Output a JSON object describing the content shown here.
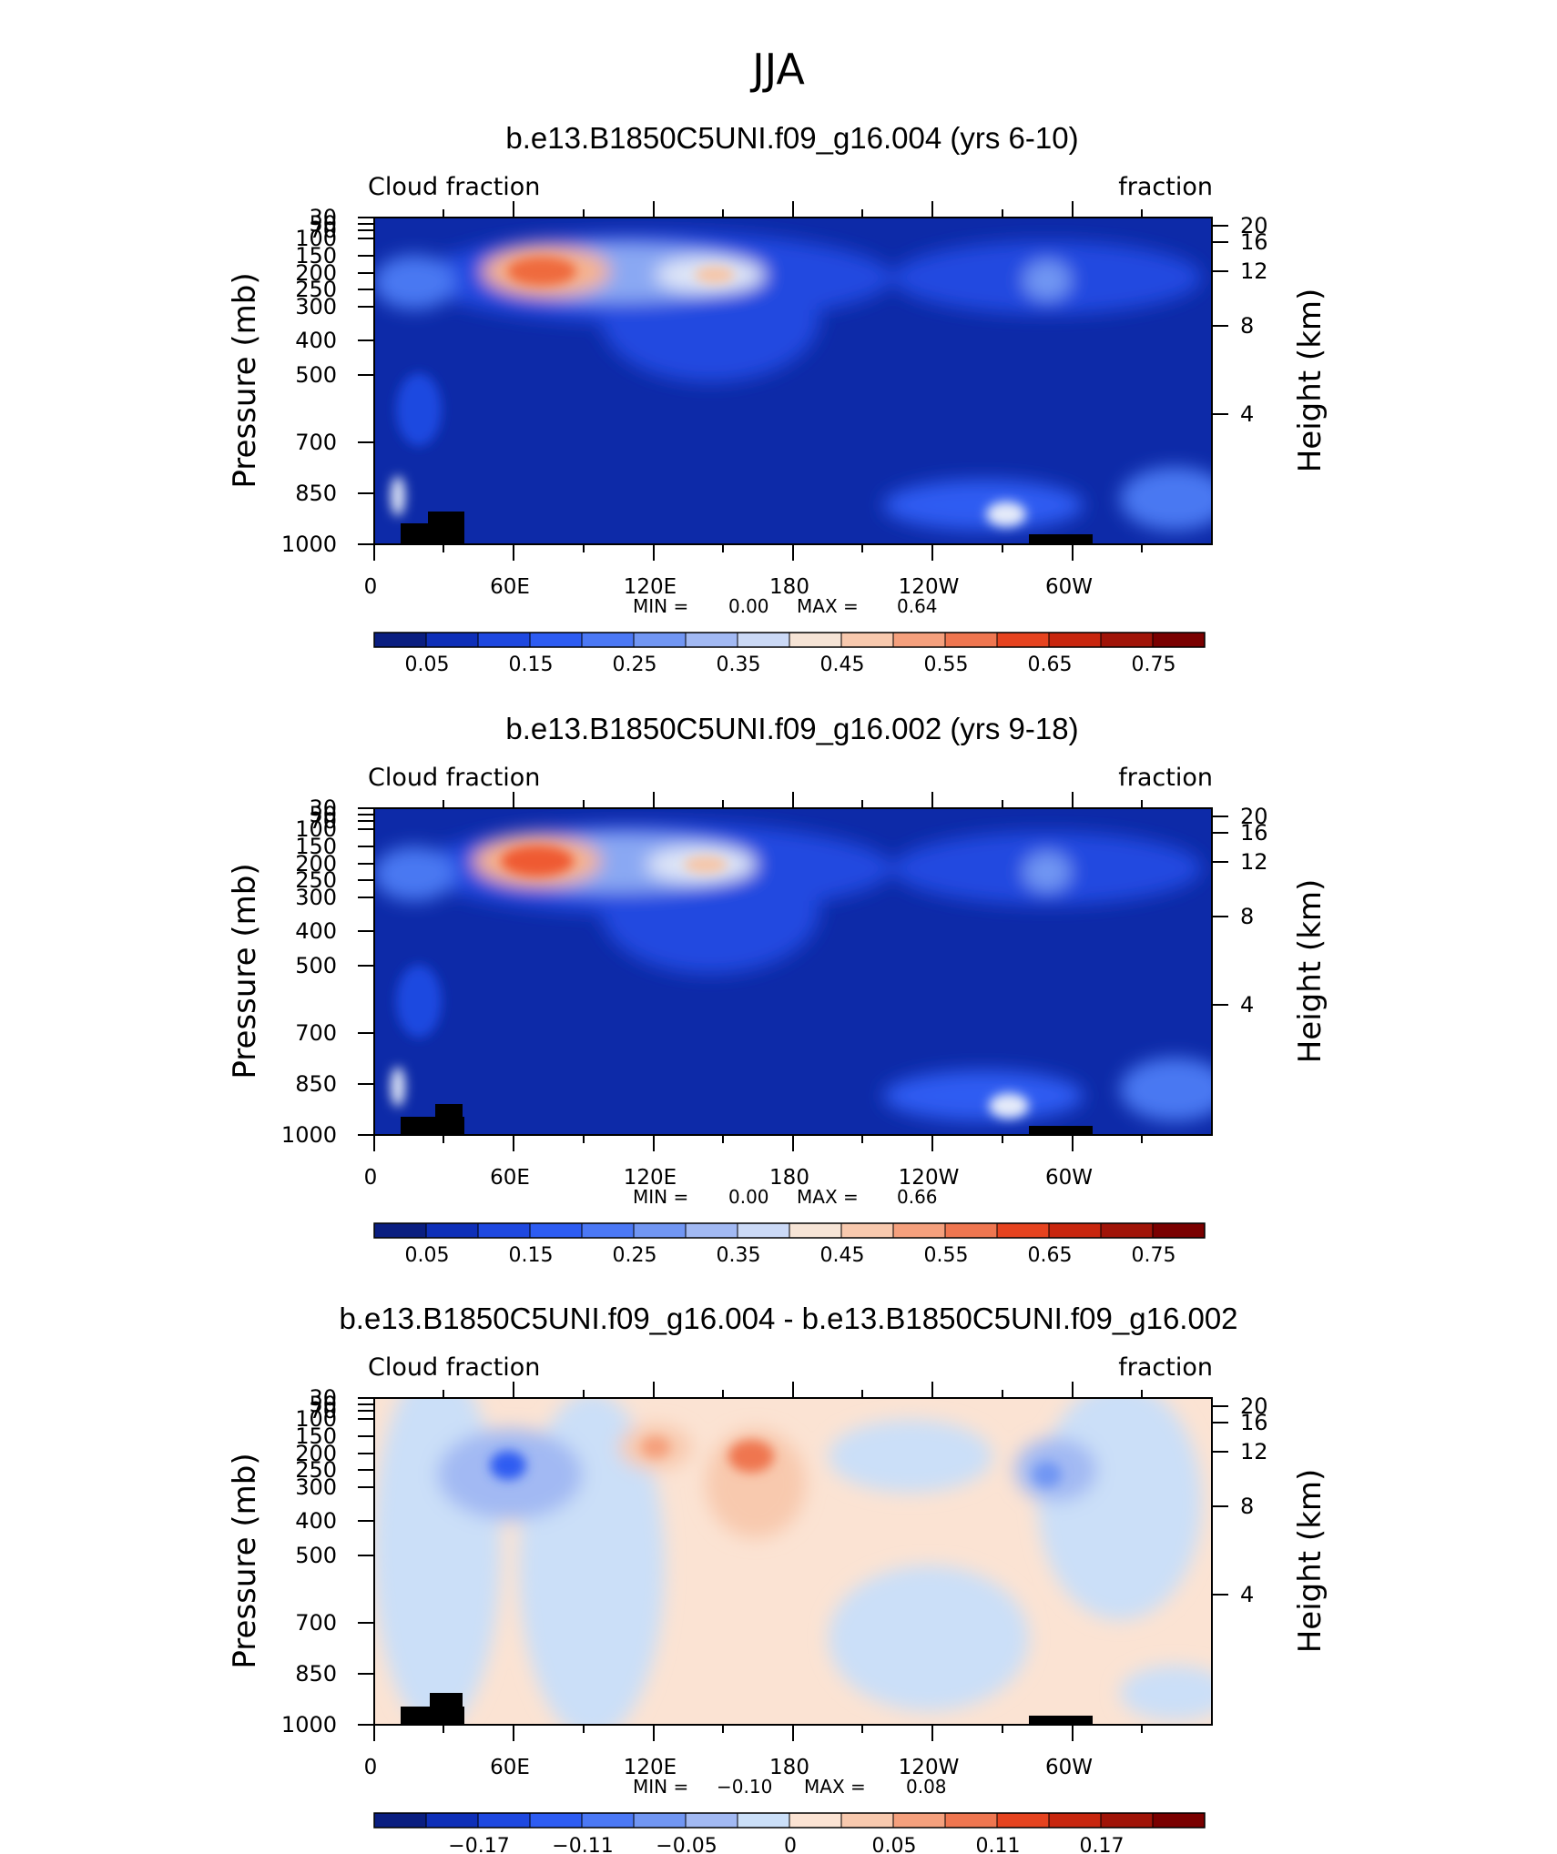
{
  "figure_title": "JJA",
  "colors": {
    "fraction_scale": [
      "#0a1e80",
      "#0e2fb8",
      "#1e48e0",
      "#2d5cf2",
      "#4b78f5",
      "#7196f3",
      "#a2b9f3",
      "#cbd9f6",
      "#f6e4d6",
      "#f8c9ae",
      "#f5a07d",
      "#ef7650",
      "#e6431f",
      "#c8260e",
      "#a01408",
      "#7a0000"
    ],
    "diff_scale": [
      "#0a1e80",
      "#0e2fb8",
      "#1e48e0",
      "#2d5cf2",
      "#4b78f5",
      "#7196f3",
      "#a2b9f3",
      "#cbdff8",
      "#fbe3d3",
      "#f8c9ae",
      "#f5a07d",
      "#ef7650",
      "#e6431f",
      "#c8260e",
      "#a01408",
      "#7a0000"
    ],
    "terrain": "#000000"
  },
  "chart_data": [
    {
      "type": "heatmap",
      "title": "b.e13.B1850C5UNI.f09_g16.004 (yrs 6-10)",
      "left_label": "Cloud fraction",
      "right_label": "fraction",
      "ylabel": "Pressure (mb)",
      "y2label": "Height (km)",
      "xticks": [
        "0",
        "60E",
        "120E",
        "180",
        "120W",
        "60W"
      ],
      "yticks": [
        "30",
        "50",
        "70",
        "100",
        "150",
        "200",
        "250",
        "300",
        "400",
        "500",
        "700",
        "850",
        "1000"
      ],
      "y2ticks": [
        "20",
        "16",
        "12",
        "8",
        "4"
      ],
      "xlim": [
        0,
        360
      ],
      "ylim": [
        1000,
        30
      ],
      "min_label": "MIN =",
      "min_value": "0.00",
      "max_label": "MAX =",
      "max_value": "0.64",
      "colorbar_labels": [
        "0.05",
        "0.15",
        "0.25",
        "0.35",
        "0.45",
        "0.55",
        "0.65",
        "0.75"
      ]
    },
    {
      "type": "heatmap",
      "title": "b.e13.B1850C5UNI.f09_g16.002 (yrs 9-18)",
      "left_label": "Cloud fraction",
      "right_label": "fraction",
      "ylabel": "Pressure (mb)",
      "y2label": "Height (km)",
      "xticks": [
        "0",
        "60E",
        "120E",
        "180",
        "120W",
        "60W"
      ],
      "yticks": [
        "30",
        "50",
        "70",
        "100",
        "150",
        "200",
        "250",
        "300",
        "400",
        "500",
        "700",
        "850",
        "1000"
      ],
      "y2ticks": [
        "20",
        "16",
        "12",
        "8",
        "4"
      ],
      "xlim": [
        0,
        360
      ],
      "ylim": [
        1000,
        30
      ],
      "min_label": "MIN =",
      "min_value": "0.00",
      "max_label": "MAX =",
      "max_value": "0.66",
      "colorbar_labels": [
        "0.05",
        "0.15",
        "0.25",
        "0.35",
        "0.45",
        "0.55",
        "0.65",
        "0.75"
      ]
    },
    {
      "type": "heatmap",
      "title": "b.e13.B1850C5UNI.f09_g16.004 - b.e13.B1850C5UNI.f09_g16.002",
      "left_label": "Cloud fraction",
      "right_label": "fraction",
      "ylabel": "Pressure (mb)",
      "y2label": "Height (km)",
      "xticks": [
        "0",
        "60E",
        "120E",
        "180",
        "120W",
        "60W"
      ],
      "yticks": [
        "30",
        "50",
        "70",
        "100",
        "150",
        "200",
        "250",
        "300",
        "400",
        "500",
        "700",
        "850",
        "1000"
      ],
      "y2ticks": [
        "20",
        "16",
        "12",
        "8",
        "4"
      ],
      "xlim": [
        0,
        360
      ],
      "ylim": [
        1000,
        30
      ],
      "min_label": "MIN =",
      "min_value": "−0.10",
      "max_label": "MAX =",
      "max_value": "0.08",
      "colorbar_labels": [
        "−0.17",
        "−0.11",
        "−0.05",
        "0",
        "0.05",
        "0.11",
        "0.17"
      ]
    }
  ]
}
